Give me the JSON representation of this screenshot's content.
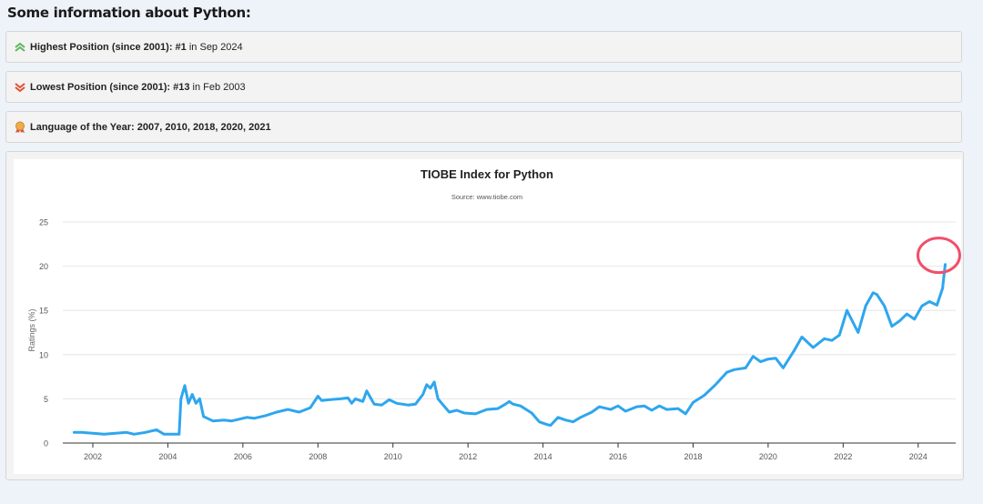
{
  "heading": "Some information about Python:",
  "info": [
    {
      "icon": "double-chevron-up-icon",
      "label": "Highest Position (since 2001):",
      "value": "#1",
      "suffix": "in Sep 2024"
    },
    {
      "icon": "double-chevron-down-icon",
      "label": "Lowest Position (since 2001):",
      "value": "#13",
      "suffix": "in Feb 2003"
    },
    {
      "icon": "medal-icon",
      "label": "Language of the Year:",
      "value": "2007, 2010, 2018, 2020, 2021"
    }
  ],
  "colors": {
    "line": "#2ea6ee",
    "highlight": "#f0506a",
    "up": "#5cb85c",
    "down": "#e2502e"
  },
  "chart_data": {
    "type": "line",
    "title": "TIOBE Index for Python",
    "subtitle": "Source: www.tiobe.com",
    "ylabel": "Ratings (%)",
    "xlabel": "",
    "xlim": [
      2001.2,
      2025.0
    ],
    "ylim": [
      0,
      25
    ],
    "yticks": [
      0,
      5,
      10,
      15,
      20,
      25
    ],
    "xticks": [
      2002,
      2004,
      2006,
      2008,
      2010,
      2012,
      2014,
      2016,
      2018,
      2020,
      2022,
      2024
    ],
    "grid": true,
    "legend": "none",
    "annotation": "circle around latest value",
    "series": [
      {
        "x": [
          2001.5,
          2001.7,
          2002.0,
          2002.3,
          2002.6,
          2002.9,
          2003.1,
          2003.4,
          2003.7,
          2003.9,
          2004.0,
          2004.3,
          2004.35,
          2004.45,
          2004.55,
          2004.65,
          2004.75,
          2004.85,
          2004.95,
          2005.2,
          2005.5,
          2005.7,
          2005.9,
          2006.1,
          2006.3,
          2006.6,
          2006.9,
          2007.2,
          2007.5,
          2007.8,
          2008.0,
          2008.1,
          2008.3,
          2008.6,
          2008.8,
          2008.9,
          2009.0,
          2009.2,
          2009.3,
          2009.5,
          2009.7,
          2009.9,
          2010.1,
          2010.4,
          2010.6,
          2010.8,
          2010.9,
          2011.0,
          2011.1,
          2011.2,
          2011.4,
          2011.5,
          2011.7,
          2011.9,
          2012.2,
          2012.5,
          2012.8,
          2013.0,
          2013.1,
          2013.2,
          2013.4,
          2013.7,
          2013.9,
          2014.1,
          2014.2,
          2014.4,
          2014.6,
          2014.8,
          2015.0,
          2015.3,
          2015.5,
          2015.8,
          2016.0,
          2016.2,
          2016.5,
          2016.7,
          2016.9,
          2017.1,
          2017.3,
          2017.6,
          2017.8,
          2018.0,
          2018.3,
          2018.6,
          2018.9,
          2019.1,
          2019.4,
          2019.6,
          2019.8,
          2020.0,
          2020.2,
          2020.4,
          2020.7,
          2020.9,
          2021.2,
          2021.5,
          2021.7,
          2021.9,
          2022.1,
          2022.4,
          2022.6,
          2022.8,
          2022.9,
          2023.1,
          2023.3,
          2023.5,
          2023.7,
          2023.9,
          2024.1,
          2024.3,
          2024.5,
          2024.65,
          2024.72
        ],
        "values": [
          1.2,
          1.2,
          1.1,
          1.0,
          1.1,
          1.2,
          1.0,
          1.2,
          1.5,
          1.0,
          1.0,
          1.0,
          5.0,
          6.5,
          4.5,
          5.5,
          4.5,
          5.0,
          3.0,
          2.5,
          2.6,
          2.5,
          2.7,
          2.9,
          2.8,
          3.1,
          3.5,
          3.8,
          3.5,
          4.0,
          5.3,
          4.8,
          4.9,
          5.0,
          5.1,
          4.5,
          5.0,
          4.7,
          5.9,
          4.4,
          4.3,
          4.9,
          4.5,
          4.3,
          4.4,
          5.5,
          6.6,
          6.2,
          6.9,
          5.0,
          4.0,
          3.5,
          3.7,
          3.4,
          3.3,
          3.8,
          3.9,
          4.4,
          4.7,
          4.4,
          4.2,
          3.4,
          2.4,
          2.1,
          2.0,
          2.9,
          2.6,
          2.4,
          2.9,
          3.5,
          4.1,
          3.8,
          4.2,
          3.6,
          4.1,
          4.2,
          3.7,
          4.2,
          3.8,
          3.9,
          3.3,
          4.6,
          5.4,
          6.6,
          8.0,
          8.3,
          8.5,
          9.8,
          9.2,
          9.5,
          9.6,
          8.5,
          10.5,
          12.0,
          10.8,
          11.8,
          11.6,
          12.2,
          15.0,
          12.5,
          15.5,
          17.0,
          16.8,
          15.5,
          13.2,
          13.8,
          14.6,
          14.0,
          15.5,
          16.0,
          15.6,
          17.5,
          20.2
        ]
      }
    ]
  }
}
